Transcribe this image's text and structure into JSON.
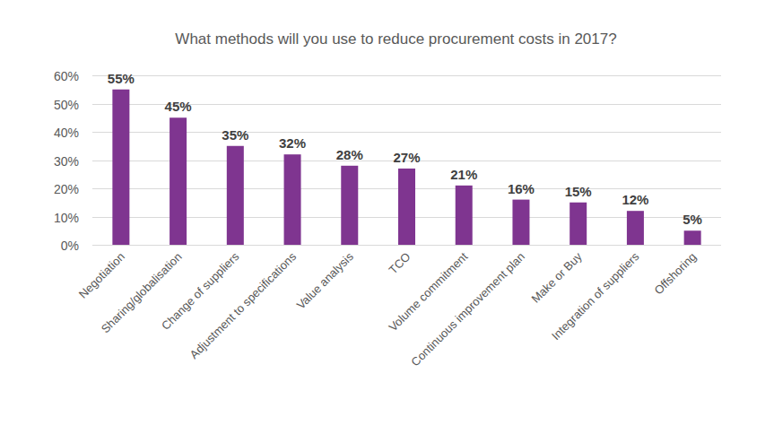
{
  "chart_data": {
    "type": "bar",
    "title": "What methods will you use to reduce procurement costs in 2017?",
    "categories": [
      "Negotiation",
      "Sharing/globalisation",
      "Change of suppliers",
      "Adjustment to specifications",
      "Value analysis",
      "TCO",
      "Volume commitment",
      "Continuous improvement plan",
      "Make or Buy",
      "Integration of suppliers",
      "Offshoring"
    ],
    "values": [
      55,
      45,
      35,
      32,
      28,
      27,
      21,
      16,
      15,
      12,
      5
    ],
    "value_labels": [
      "55%",
      "45%",
      "35%",
      "32%",
      "28%",
      "27%",
      "21%",
      "16%",
      "15%",
      "12%",
      "5%"
    ],
    "color": "#7f3590",
    "ylim": [
      0,
      60
    ],
    "yticks": [
      {
        "value": 0,
        "label": "0%"
      },
      {
        "value": 10,
        "label": "10%"
      },
      {
        "value": 20,
        "label": "20%"
      },
      {
        "value": 30,
        "label": "30%"
      },
      {
        "value": 40,
        "label": "40%"
      },
      {
        "value": 50,
        "label": "50%"
      },
      {
        "value": 60,
        "label": "60%"
      }
    ],
    "grid": true,
    "data_labels": true
  }
}
